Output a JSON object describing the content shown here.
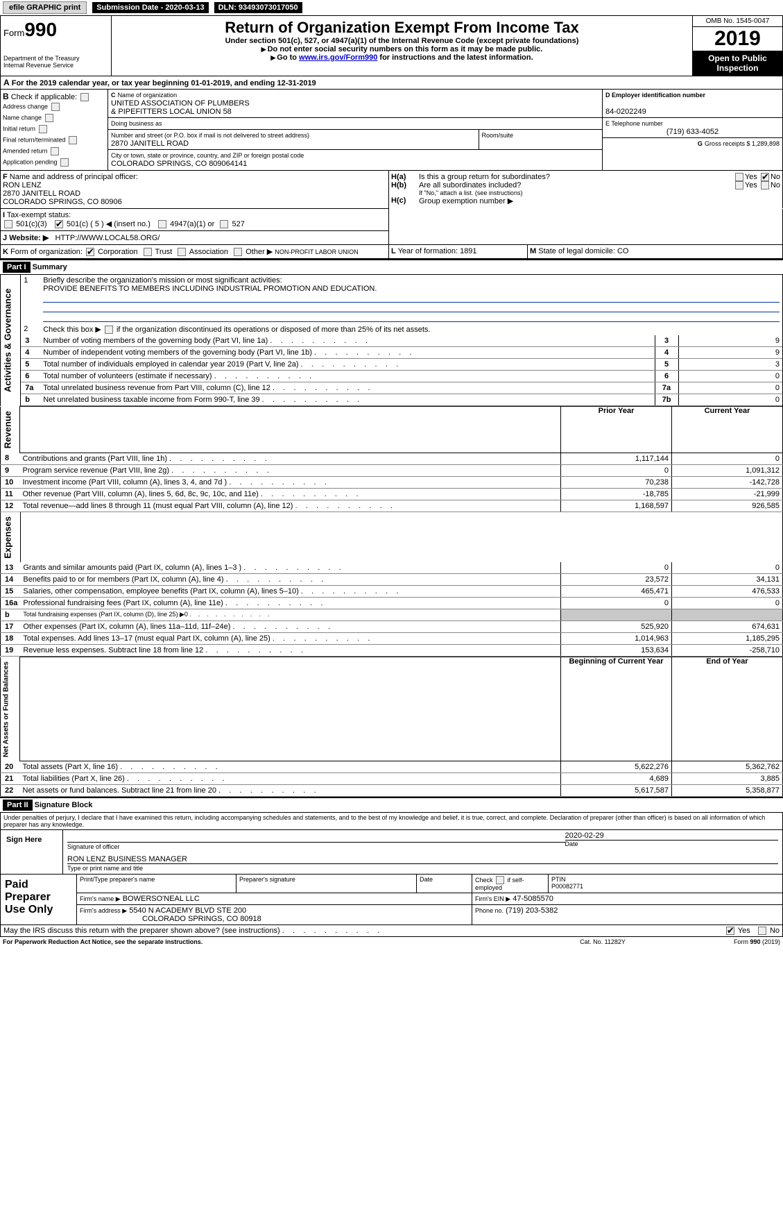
{
  "topbar": {
    "efile_label": "efile GRAPHIC print",
    "submission_label": "Submission Date - 2020-03-13",
    "dln_label": "DLN: 93493073017050"
  },
  "header": {
    "form_word": "Form",
    "form_number": "990",
    "dept": "Department of the Treasury",
    "irs": "Internal Revenue Service",
    "title": "Return of Organization Exempt From Income Tax",
    "subtitle": "Under section 501(c), 527, or 4947(a)(1) of the Internal Revenue Code (except private foundations)",
    "note1": "Do not enter social security numbers on this form as it may be made public.",
    "note2_pre": "Go to ",
    "note2_link": "www.irs.gov/Form990",
    "note2_post": " for instructions and the latest information.",
    "omb": "OMB No. 1545-0047",
    "year": "2019",
    "open": "Open to Public Inspection"
  },
  "cal_line": {
    "a_label": "A",
    "text_pre": "For the 2019 calendar year, or tax year beginning ",
    "begin": "01-01-2019",
    "text_mid": ", and ending ",
    "end": "12-31-2019"
  },
  "boxB": {
    "label": "B",
    "check_if": "Check if applicable:",
    "items": [
      "Address change",
      "Name change",
      "Initial return",
      "Final return/terminated",
      "Amended return",
      "Application pending"
    ]
  },
  "boxC": {
    "label_c": "C",
    "name_label": "Name of organization",
    "name1": "UNITED ASSOCIATION OF PLUMBERS",
    "name2": "& PIPEFITTERS LOCAL UNION 58",
    "dba_label": "Doing business as",
    "street_label": "Number and street (or P.O. box if mail is not delivered to street address)",
    "street": "2870 JANITELL ROAD",
    "room_label": "Room/suite",
    "city_label": "City or town, state or province, country, and ZIP or foreign postal code",
    "city": "COLORADO SPRINGS, CO  809064141"
  },
  "boxD": {
    "label": "D Employer identification number",
    "ein": "84-0202249"
  },
  "boxE": {
    "label": "E Telephone number",
    "phone": "(719) 633-4052"
  },
  "boxG": {
    "label": "G",
    "text": "Gross receipts $ 1,289,898"
  },
  "boxF": {
    "label": "F",
    "text": "Name and address of principal officer:",
    "name": "RON LENZ",
    "addr1": "2870 JANITELL ROAD",
    "addr2": "COLORADO SPRINGS, CO  80906"
  },
  "boxH": {
    "ha_label": "H(a)",
    "ha_text": "Is this a group return for subordinates?",
    "hb_label": "H(b)",
    "hb_text": "Are all subordinates included?",
    "hb_note": "If \"No,\" attach a list. (see instructions)",
    "hc_label": "H(c)",
    "hc_text": "Group exemption number ▶",
    "yes": "Yes",
    "no": "No"
  },
  "boxI": {
    "label": "I",
    "text": "Tax-exempt status:",
    "opts": [
      "501(c)(3)",
      "501(c) ( 5 ) ◀ (insert no.)",
      "4947(a)(1) or",
      "527"
    ]
  },
  "boxJ": {
    "label": "J",
    "text": "Website: ▶",
    "url": "HTTP://WWW.LOCAL58.ORG/"
  },
  "boxK": {
    "label": "K",
    "text": "Form of organization:",
    "opts": [
      "Corporation",
      "Trust",
      "Association",
      "Other ▶"
    ],
    "other": "NON-PROFIT LABOR UNION"
  },
  "boxL": {
    "label": "L",
    "text": "Year of formation: 1891"
  },
  "boxM": {
    "label": "M",
    "text": "State of legal domicile: CO"
  },
  "part1": {
    "label": "Part I",
    "title": "Summary"
  },
  "summary": {
    "line1_label": "1",
    "line1_text": "Briefly describe the organization's mission or most significant activities:",
    "line1_val": "PROVIDE BENEFITS TO MEMBERS INCLUDING INDUSTRIAL PROMOTION AND EDUCATION.",
    "line2_label": "2",
    "line2_text": "Check this box ▶        if the organization discontinued its operations or disposed of more than 25% of its net assets.",
    "rows_top": [
      {
        "n": "3",
        "t": "Number of voting members of the governing body (Part VI, line 1a)",
        "box": "3",
        "v": "9"
      },
      {
        "n": "4",
        "t": "Number of independent voting members of the governing body (Part VI, line 1b)",
        "box": "4",
        "v": "9"
      },
      {
        "n": "5",
        "t": "Total number of individuals employed in calendar year 2019 (Part V, line 2a)",
        "box": "5",
        "v": "3"
      },
      {
        "n": "6",
        "t": "Total number of volunteers (estimate if necessary)",
        "box": "6",
        "v": "0"
      },
      {
        "n": "7a",
        "t": "Total unrelated business revenue from Part VIII, column (C), line 12",
        "box": "7a",
        "v": "0"
      },
      {
        "n": "b",
        "t": "Net unrelated business taxable income from Form 990-T, line 39",
        "box": "7b",
        "v": "0"
      }
    ],
    "col_prior": "Prior Year",
    "col_current": "Current Year",
    "revenue_rows": [
      {
        "n": "8",
        "t": "Contributions and grants (Part VIII, line 1h)",
        "p": "1,117,144",
        "c": "0"
      },
      {
        "n": "9",
        "t": "Program service revenue (Part VIII, line 2g)",
        "p": "0",
        "c": "1,091,312"
      },
      {
        "n": "10",
        "t": "Investment income (Part VIII, column (A), lines 3, 4, and 7d )",
        "p": "70,238",
        "c": "-142,728"
      },
      {
        "n": "11",
        "t": "Other revenue (Part VIII, column (A), lines 5, 6d, 8c, 9c, 10c, and 11e)",
        "p": "-18,785",
        "c": "-21,999"
      },
      {
        "n": "12",
        "t": "Total revenue—add lines 8 through 11 (must equal Part VIII, column (A), line 12)",
        "p": "1,168,597",
        "c": "926,585"
      }
    ],
    "expense_rows": [
      {
        "n": "13",
        "t": "Grants and similar amounts paid (Part IX, column (A), lines 1–3 )",
        "p": "0",
        "c": "0"
      },
      {
        "n": "14",
        "t": "Benefits paid to or for members (Part IX, column (A), line 4)",
        "p": "23,572",
        "c": "34,131"
      },
      {
        "n": "15",
        "t": "Salaries, other compensation, employee benefits (Part IX, column (A), lines 5–10)",
        "p": "465,471",
        "c": "476,533"
      },
      {
        "n": "16a",
        "t": "Professional fundraising fees (Part IX, column (A), line 11e)",
        "p": "0",
        "c": "0"
      },
      {
        "n": "b",
        "t": "Total fundraising expenses (Part IX, column (D), line 25) ▶0",
        "p": "",
        "c": "",
        "shaded": true
      },
      {
        "n": "17",
        "t": "Other expenses (Part IX, column (A), lines 11a–11d, 11f–24e)",
        "p": "525,920",
        "c": "674,631"
      },
      {
        "n": "18",
        "t": "Total expenses. Add lines 13–17 (must equal Part IX, column (A), line 25)",
        "p": "1,014,963",
        "c": "1,185,295"
      },
      {
        "n": "19",
        "t": "Revenue less expenses. Subtract line 18 from line 12",
        "p": "153,634",
        "c": "-258,710"
      }
    ],
    "col_begin": "Beginning of Current Year",
    "col_end": "End of Year",
    "net_rows": [
      {
        "n": "20",
        "t": "Total assets (Part X, line 16)",
        "p": "5,622,276",
        "c": "5,362,762"
      },
      {
        "n": "21",
        "t": "Total liabilities (Part X, line 26)",
        "p": "4,689",
        "c": "3,885"
      },
      {
        "n": "22",
        "t": "Net assets or fund balances. Subtract line 21 from line 20",
        "p": "5,617,587",
        "c": "5,358,877"
      }
    ],
    "vlabels": {
      "ag": "Activities & Governance",
      "rev": "Revenue",
      "exp": "Expenses",
      "net": "Net Assets or Fund Balances"
    }
  },
  "part2": {
    "label": "Part II",
    "title": "Signature Block"
  },
  "perjury": "Under penalties of perjury, I declare that I have examined this return, including accompanying schedules and statements, and to the best of my knowledge and belief, it is true, correct, and complete. Declaration of preparer (other than officer) is based on all information of which preparer has any knowledge.",
  "sign": {
    "here": "Sign Here",
    "sig_officer": "Signature of officer",
    "date_label": "Date",
    "date": "2020-02-29",
    "name_title": "RON LENZ  BUSINESS MANAGER",
    "name_title_label": "Type or print name and title"
  },
  "paid": {
    "label": "Paid Preparer Use Only",
    "col1": "Print/Type preparer's name",
    "col2": "Preparer's signature",
    "col3": "Date",
    "check_self": "Check         if self-employed",
    "ptin_label": "PTIN",
    "ptin": "P00082771",
    "firm_name_label": "Firm's name   ▶",
    "firm_name": "BOWERSO'NEAL LLC",
    "firm_ein_label": "Firm's EIN ▶",
    "firm_ein": "47-5085570",
    "firm_addr_label": "Firm's address ▶",
    "firm_addr1": "5540 N ACADEMY BLVD STE 200",
    "firm_addr2": "COLORADO SPRINGS, CO 80918",
    "phone_label": "Phone no.",
    "phone": "(719) 203-5382"
  },
  "footer": {
    "discuss": "May the IRS discuss this return with the preparer shown above? (see instructions)",
    "yes": "Yes",
    "no": "No",
    "pra": "For Paperwork Reduction Act Notice, see the separate instructions.",
    "cat": "Cat. No. 11282Y",
    "form": "Form 990 (2019)"
  }
}
